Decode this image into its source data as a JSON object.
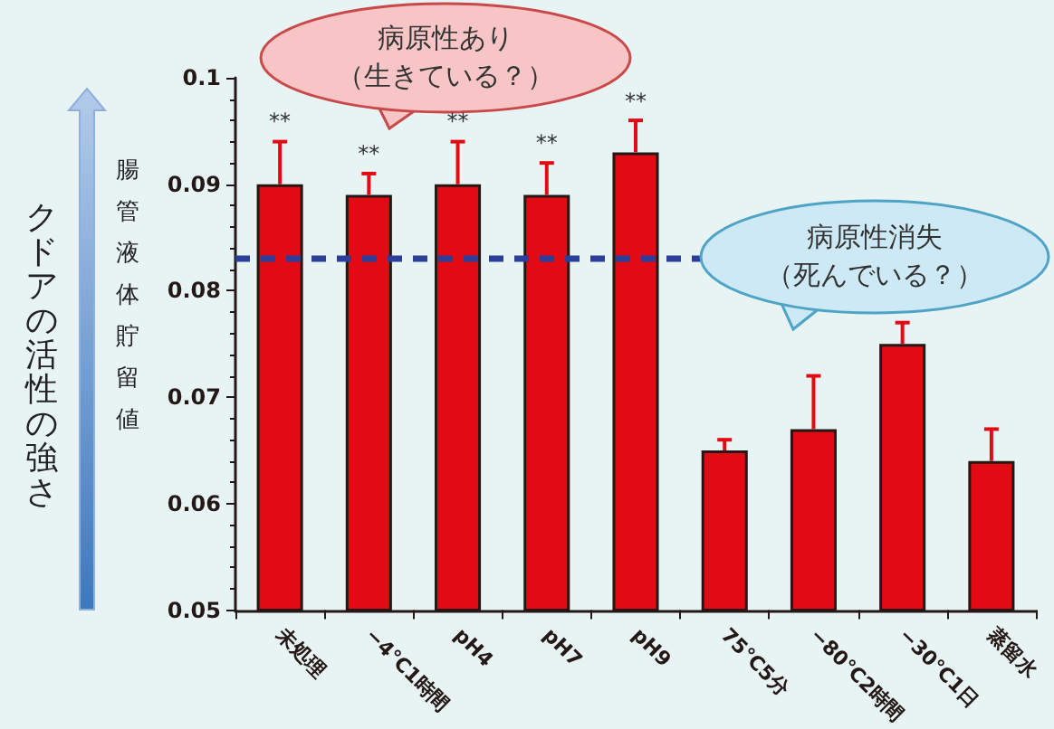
{
  "chart_data": {
    "type": "bar",
    "ylabel": "腸管液体貯留値",
    "categories": [
      "未処理",
      "−4℃1時間",
      "pH4",
      "pH7",
      "pH9",
      "75℃5分",
      "−80℃2時間",
      "−30℃1日",
      "蒸留水"
    ],
    "values": [
      0.09,
      0.089,
      0.09,
      0.089,
      0.093,
      0.065,
      0.067,
      0.075,
      0.064
    ],
    "color": "#e30b13",
    "errors": [
      [
        0.09,
        0.094
      ],
      [
        0.089,
        0.091
      ],
      [
        0.09,
        0.094
      ],
      [
        0.089,
        0.092
      ],
      [
        0.093,
        0.096
      ],
      [
        0.065,
        0.066
      ],
      [
        0.067,
        0.072
      ],
      [
        0.075,
        0.077
      ],
      [
        0.064,
        0.067
      ]
    ],
    "ylim": [
      0.05,
      0.1
    ],
    "yticks": [
      0.05,
      0.06,
      0.07,
      0.08,
      0.09,
      0.1
    ],
    "grid": false,
    "ref_lines": [
      {
        "axis": "y",
        "value": 0.083,
        "color": "#2b3f9a",
        "line_style": "dashed"
      }
    ],
    "annotations": [
      "クドアの活性の強さ",
      "病原性あり",
      "（生きている？）",
      "病原性消失",
      "（死んでいる？）",
      "**",
      "**",
      "**",
      "**",
      "**"
    ]
  }
}
